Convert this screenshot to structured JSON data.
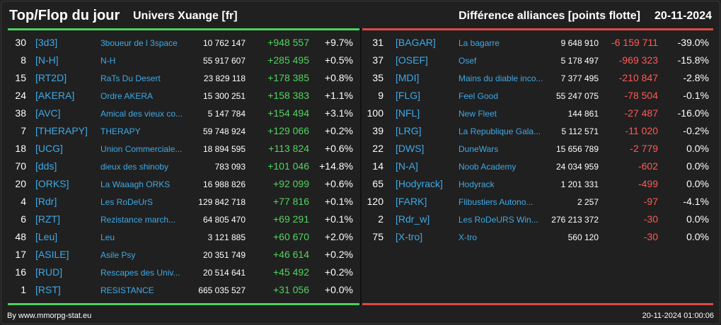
{
  "header": {
    "title": "Top/Flop du jour",
    "universe": "Univers Xuange [fr]",
    "subject": "Différence alliances [points flotte]",
    "date": "20-11-2024"
  },
  "top": [
    {
      "rank": "30",
      "tag": "[3d3]",
      "name": "3boueur de l 3space",
      "points": "10 762 147",
      "diff": "+948 557",
      "pct": "+9.7%"
    },
    {
      "rank": "8",
      "tag": "[N-H]",
      "name": "N-H",
      "points": "55 917 607",
      "diff": "+285 495",
      "pct": "+0.5%"
    },
    {
      "rank": "15",
      "tag": "[RT2D]",
      "name": "RaTs Du Desert",
      "points": "23 829 118",
      "diff": "+178 385",
      "pct": "+0.8%"
    },
    {
      "rank": "24",
      "tag": "[AKERA]",
      "name": "Ordre AKERA",
      "points": "15 300 251",
      "diff": "+158 383",
      "pct": "+1.1%"
    },
    {
      "rank": "38",
      "tag": "[AVC]",
      "name": "Amical des vieux co...",
      "points": "5 147 784",
      "diff": "+154 494",
      "pct": "+3.1%"
    },
    {
      "rank": "7",
      "tag": "[THERAPY]",
      "name": "THERAPY",
      "points": "59 748 924",
      "diff": "+129 066",
      "pct": "+0.2%"
    },
    {
      "rank": "18",
      "tag": "[UCG]",
      "name": "Union Commerciale...",
      "points": "18 894 595",
      "diff": "+113 824",
      "pct": "+0.6%"
    },
    {
      "rank": "70",
      "tag": "[dds]",
      "name": "dieux des shinoby",
      "points": "783 093",
      "diff": "+101 046",
      "pct": "+14.8%"
    },
    {
      "rank": "20",
      "tag": "[ORKS]",
      "name": "La Waaagh ORKS",
      "points": "16 988 826",
      "diff": "+92 099",
      "pct": "+0.6%"
    },
    {
      "rank": "4",
      "tag": "[Rdr]",
      "name": "Les RoDeUrS",
      "points": "129 842 718",
      "diff": "+77 816",
      "pct": "+0.1%"
    },
    {
      "rank": "6",
      "tag": "[RZT]",
      "name": "Rezistance march...",
      "points": "64 805 470",
      "diff": "+69 291",
      "pct": "+0.1%"
    },
    {
      "rank": "48",
      "tag": "[Leu]",
      "name": "Leu",
      "points": "3 121 885",
      "diff": "+60 670",
      "pct": "+2.0%"
    },
    {
      "rank": "17",
      "tag": "[ASILE]",
      "name": "Asile Psy",
      "points": "20 351 749",
      "diff": "+46 614",
      "pct": "+0.2%"
    },
    {
      "rank": "16",
      "tag": "[RUD]",
      "name": "Rescapes des Univ...",
      "points": "20 514 641",
      "diff": "+45 492",
      "pct": "+0.2%"
    },
    {
      "rank": "1",
      "tag": "[RST]",
      "name": "RESISTANCE",
      "points": "665 035 527",
      "diff": "+31 056",
      "pct": "+0.0%"
    }
  ],
  "flop": [
    {
      "rank": "31",
      "tag": "[BAGAR]",
      "name": "La bagarre",
      "points": "9 648 910",
      "diff": "-6 159 711",
      "pct": "-39.0%"
    },
    {
      "rank": "37",
      "tag": "[OSEF]",
      "name": "Osef",
      "points": "5 178 497",
      "diff": "-969 323",
      "pct": "-15.8%"
    },
    {
      "rank": "35",
      "tag": "[MDI]",
      "name": "Mains du diable inco...",
      "points": "7 377 495",
      "diff": "-210 847",
      "pct": "-2.8%"
    },
    {
      "rank": "9",
      "tag": "[FLG]",
      "name": "Feel Good",
      "points": "55 247 075",
      "diff": "-78 504",
      "pct": "-0.1%"
    },
    {
      "rank": "100",
      "tag": "[NFL]",
      "name": "New Fleet",
      "points": "144 861",
      "diff": "-27 487",
      "pct": "-16.0%"
    },
    {
      "rank": "39",
      "tag": "[LRG]",
      "name": "La Republique Gala...",
      "points": "5 112 571",
      "diff": "-11 020",
      "pct": "-0.2%"
    },
    {
      "rank": "22",
      "tag": "[DWS]",
      "name": "DuneWars",
      "points": "15 656 789",
      "diff": "-2 779",
      "pct": "0.0%"
    },
    {
      "rank": "14",
      "tag": "[N-A]",
      "name": "Noob Academy",
      "points": "24 034 959",
      "diff": "-602",
      "pct": "0.0%"
    },
    {
      "rank": "65",
      "tag": "[Hodyrack]",
      "name": "Hodyrack",
      "points": "1 201 331",
      "diff": "-499",
      "pct": "0.0%"
    },
    {
      "rank": "120",
      "tag": "[FARK]",
      "name": "Flibustiers Autono...",
      "points": "2 257",
      "diff": "-97",
      "pct": "-4.1%"
    },
    {
      "rank": "2",
      "tag": "[Rdr_w]",
      "name": "Les RoDeURS Win...",
      "points": "276 213 372",
      "diff": "-30",
      "pct": "0.0%"
    },
    {
      "rank": "75",
      "tag": "[X-tro]",
      "name": "X-tro",
      "points": "560 120",
      "diff": "-30",
      "pct": "0.0%"
    }
  ],
  "footer": {
    "source": "By www.mmorpg-stat.eu",
    "timestamp": "20-11-2024 01:00:06"
  },
  "colors": {
    "background": "#202020",
    "tag": "#3fa9e6",
    "positive": "#52d45f",
    "negative": "#ff5a56",
    "top_bar": "#4bd15c",
    "flop_bar": "#dc4a44"
  }
}
